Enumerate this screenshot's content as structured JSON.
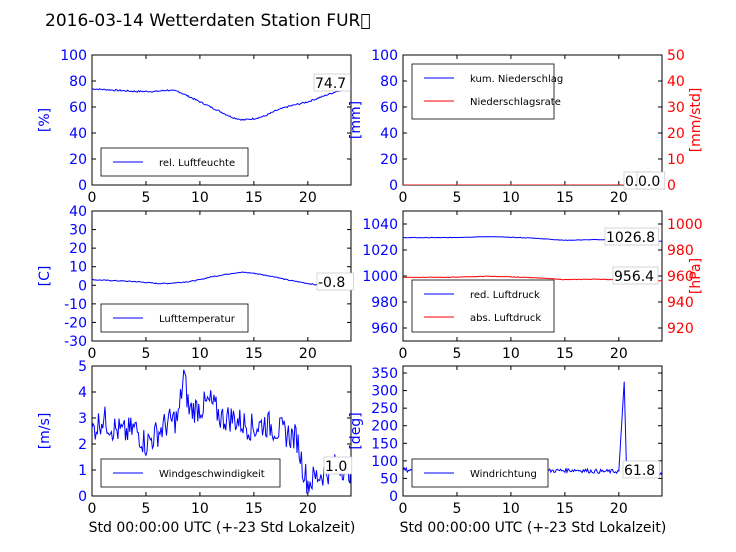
{
  "figure": {
    "title": "2016-03-14 Wetterdaten Station FUR\u0000",
    "xlabel": "Std 00:00:00 UTC (+-23 Std Lokalzeit)"
  },
  "colors": {
    "primary": "#0000ff",
    "secondary": "#ff0000",
    "light": "#8080ff"
  },
  "chart_data": [
    {
      "type": "line",
      "xlim": [
        0,
        24
      ],
      "xticks": [
        0,
        5,
        10,
        15,
        20
      ],
      "ylim": [
        0,
        100
      ],
      "yticks": [
        0,
        20,
        40,
        60,
        80,
        100
      ],
      "ylabel": "[%]",
      "series": [
        {
          "name": "rel. Luftfeuchte",
          "color": "#0000ff",
          "x": [
            0,
            2,
            4,
            6,
            7,
            8,
            9,
            10,
            11,
            12,
            13,
            14,
            15,
            16,
            17,
            18,
            19,
            20,
            21,
            22,
            23,
            24
          ],
          "y": [
            74,
            73,
            72,
            72,
            73,
            72,
            68,
            64,
            60,
            56,
            52,
            50,
            51,
            53,
            57,
            60,
            62,
            64,
            67,
            70,
            73,
            75
          ]
        }
      ],
      "annotations": [
        {
          "text": "74.7"
        }
      ]
    },
    {
      "type": "line",
      "xlim": [
        0,
        24
      ],
      "xticks": [
        0,
        5,
        10,
        15,
        20
      ],
      "ylim": [
        0,
        100
      ],
      "yticks": [
        0,
        20,
        40,
        60,
        80,
        100
      ],
      "ylabel": "[mm]",
      "y2lim": [
        0,
        50
      ],
      "y2ticks": [
        0,
        10,
        20,
        30,
        40,
        50
      ],
      "y2label": "[mm/std]",
      "series": [
        {
          "name": "kum. Niederschlag",
          "color": "#0000ff",
          "axis": "left",
          "x": [
            0,
            24
          ],
          "y": [
            0,
            0
          ]
        },
        {
          "name": "Niederschlagsrate",
          "color": "#ff0000",
          "axis": "right",
          "x": [
            0,
            24
          ],
          "y": [
            0,
            0
          ]
        }
      ],
      "annotations": [
        {
          "text": "0.0"
        },
        {
          "text": "0.0"
        }
      ]
    },
    {
      "type": "line",
      "xlim": [
        0,
        24
      ],
      "xticks": [
        0,
        5,
        10,
        15,
        20
      ],
      "ylim": [
        -30,
        40
      ],
      "yticks": [
        -30,
        -20,
        -10,
        0,
        10,
        20,
        30,
        40
      ],
      "ylabel": "[C]",
      "series": [
        {
          "name": "Lufttemperatur",
          "color": "#0000ff",
          "x": [
            0,
            2,
            4,
            6,
            7,
            8,
            9,
            10,
            11,
            12,
            13,
            14,
            15,
            16,
            17,
            18,
            19,
            20,
            21,
            22,
            23,
            24
          ],
          "y": [
            3,
            2.5,
            2,
            1,
            1,
            1.5,
            2,
            3,
            4.5,
            5.5,
            6.5,
            7,
            6.5,
            5.5,
            4.5,
            3,
            2,
            1,
            0,
            -0.5,
            -0.8,
            -0.8
          ]
        }
      ],
      "annotations": [
        {
          "text": "-0.8"
        }
      ]
    },
    {
      "type": "line",
      "xlim": [
        0,
        24
      ],
      "xticks": [
        0,
        5,
        10,
        15,
        20
      ],
      "ylim": [
        950,
        1050
      ],
      "yticks": [
        960,
        980,
        1000,
        1020,
        1040
      ],
      "y2lim": [
        910,
        1010
      ],
      "y2ticks": [
        920,
        940,
        960,
        980,
        1000
      ],
      "y2label": "[hPa]",
      "series": [
        {
          "name": "red. Luftdruck",
          "color": "#0000ff",
          "axis": "left",
          "x": [
            0,
            4,
            8,
            12,
            15,
            18,
            21,
            24
          ],
          "y": [
            1029.5,
            1029.5,
            1030.3,
            1029.2,
            1027.5,
            1028.0,
            1027.2,
            1026.8
          ]
        },
        {
          "name": "abs. Luftdruck",
          "color": "#ff0000",
          "axis": "right",
          "x": [
            0,
            4,
            8,
            12,
            15,
            18,
            21,
            24
          ],
          "y": [
            959.0,
            959.0,
            959.8,
            958.8,
            957.2,
            957.6,
            956.8,
            956.4
          ]
        }
      ],
      "annotations": [
        {
          "text": "1026.8"
        },
        {
          "text": "956.4"
        }
      ]
    },
    {
      "type": "line",
      "xlim": [
        0,
        24
      ],
      "xticks": [
        0,
        5,
        10,
        15,
        20
      ],
      "ylim": [
        0,
        5
      ],
      "yticks": [
        0,
        1,
        2,
        3,
        4,
        5
      ],
      "ylabel": "[m/s]",
      "series": [
        {
          "name": "Windgeschwindigkeit",
          "color": "#0000ff",
          "x": [
            0,
            1,
            2,
            3,
            4,
            5,
            6,
            7,
            8,
            8.5,
            9,
            10,
            11,
            12,
            13,
            14,
            15,
            16,
            17,
            18,
            19,
            19.5,
            20,
            21,
            22,
            23,
            24
          ],
          "y": [
            2.5,
            3.0,
            2.6,
            2.4,
            2.6,
            2.0,
            2.4,
            2.8,
            3.0,
            4.7,
            3.3,
            3.4,
            3.6,
            3.0,
            3.0,
            2.8,
            2.6,
            2.8,
            2.6,
            2.4,
            2.2,
            1.2,
            0.5,
            0.8,
            1.0,
            1.2,
            1.0
          ]
        }
      ],
      "annotations": [
        {
          "text": "1.0"
        }
      ]
    },
    {
      "type": "line",
      "xlim": [
        0,
        24
      ],
      "xticks": [
        0,
        5,
        10,
        15,
        20
      ],
      "ylim": [
        0,
        370
      ],
      "yticks": [
        0,
        50,
        100,
        150,
        200,
        250,
        300,
        350
      ],
      "ylabel": "[deg]",
      "series": [
        {
          "name": "Windrichtung",
          "color": "#0000ff",
          "x": [
            0,
            2,
            4,
            6,
            8,
            10,
            12,
            14,
            16,
            18,
            20,
            20.3,
            20.5,
            20.7,
            21,
            22,
            23,
            24
          ],
          "y": [
            75,
            72,
            70,
            73,
            71,
            72,
            70,
            72,
            74,
            70,
            70,
            220,
            330,
            80,
            60,
            65,
            62,
            62
          ]
        }
      ],
      "annotations": [
        {
          "text": "61.8"
        }
      ]
    }
  ]
}
